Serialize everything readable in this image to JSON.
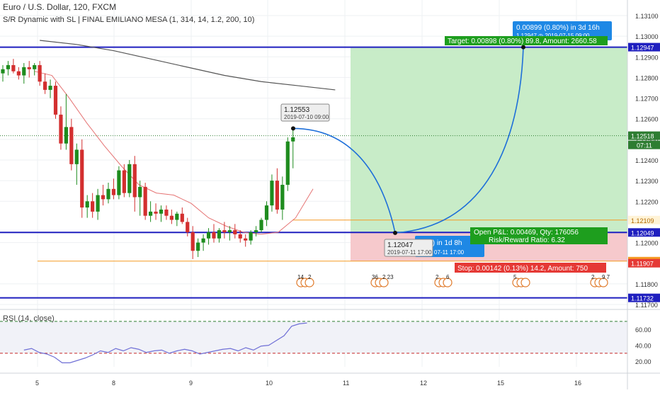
{
  "header": {
    "symbol": "Euro / U.S. Dollar",
    "interval": "120",
    "exchange": "FXCM",
    "indicator": "S/R Dynamic with SL | FINAL EMILIANO MESA (1, 314, 14, 1.2, 200, 10)"
  },
  "colors": {
    "up": "#26a69a",
    "upBody": "#1e8c1e",
    "down": "#d32f2f",
    "srLine": "#1f1fbf",
    "orange": "#f59a23",
    "targetZone": "#c8ecc8",
    "stopZone": "#f6c9cc",
    "arc": "#1e6fd9",
    "ma200": "#555555",
    "ma10": "#e57373",
    "rsi": "#6f6fd6"
  },
  "chart_data": {
    "type": "candlestick",
    "price_axis": {
      "ticks": [
        "1.13100",
        "1.13000",
        "1.12900",
        "1.12800",
        "1.12700",
        "1.12600",
        "1.12500",
        "1.12400",
        "1.12300",
        "1.12200",
        "1.12000",
        "1.11800",
        "1.11700"
      ],
      "range": [
        1.1166,
        1.1318
      ]
    },
    "time_axis": {
      "ticks": [
        "5",
        "8",
        "9",
        "10",
        "11",
        "12",
        "15",
        "16"
      ]
    },
    "candles": [
      [
        1.1282,
        1.1286,
        1.1278,
        1.1284
      ],
      [
        1.1284,
        1.1288,
        1.1281,
        1.1286
      ],
      [
        1.1286,
        1.1289,
        1.1282,
        1.1283
      ],
      [
        1.1283,
        1.1285,
        1.1279,
        1.1281
      ],
      [
        1.1281,
        1.1287,
        1.1277,
        1.1285
      ],
      [
        1.1285,
        1.1288,
        1.128,
        1.1284
      ],
      [
        1.1284,
        1.1287,
        1.1281,
        1.1286
      ],
      [
        1.1286,
        1.1288,
        1.1276,
        1.1278
      ],
      [
        1.1278,
        1.1282,
        1.1272,
        1.1274
      ],
      [
        1.1274,
        1.1279,
        1.127,
        1.1276
      ],
      [
        1.1276,
        1.1278,
        1.126,
        1.1262
      ],
      [
        1.1262,
        1.1266,
        1.1245,
        1.1248
      ],
      [
        1.1248,
        1.1272,
        1.1245,
        1.1256
      ],
      [
        1.1256,
        1.126,
        1.1235,
        1.1238
      ],
      [
        1.1238,
        1.1248,
        1.1228,
        1.1245
      ],
      [
        1.1245,
        1.125,
        1.1212,
        1.1217
      ],
      [
        1.1217,
        1.1223,
        1.1212,
        1.122
      ],
      [
        1.122,
        1.1224,
        1.1212,
        1.1215
      ],
      [
        1.1215,
        1.1226,
        1.1211,
        1.1223
      ],
      [
        1.1223,
        1.1228,
        1.1218,
        1.1221
      ],
      [
        1.1221,
        1.1229,
        1.1219,
        1.1226
      ],
      [
        1.1226,
        1.1231,
        1.1221,
        1.1223
      ],
      [
        1.1223,
        1.1237,
        1.1221,
        1.1235
      ],
      [
        1.1235,
        1.1238,
        1.1222,
        1.1224
      ],
      [
        1.1224,
        1.124,
        1.1222,
        1.1238
      ],
      [
        1.1238,
        1.1242,
        1.1215,
        1.1222
      ],
      [
        1.1222,
        1.123,
        1.1213,
        1.1227
      ],
      [
        1.1227,
        1.1229,
        1.1211,
        1.1213
      ],
      [
        1.1213,
        1.122,
        1.121,
        1.1215
      ],
      [
        1.1215,
        1.1219,
        1.1211,
        1.1214
      ],
      [
        1.1214,
        1.1218,
        1.121,
        1.1216
      ],
      [
        1.1216,
        1.1218,
        1.1211,
        1.1213
      ],
      [
        1.1213,
        1.1216,
        1.1209,
        1.1211
      ],
      [
        1.1211,
        1.1215,
        1.1208,
        1.1214
      ],
      [
        1.1214,
        1.1217,
        1.1209,
        1.121
      ],
      [
        1.121,
        1.1212,
        1.1203,
        1.1205
      ],
      [
        1.1205,
        1.1208,
        1.1192,
        1.1196
      ],
      [
        1.1196,
        1.1202,
        1.1193,
        1.12
      ],
      [
        1.12,
        1.1204,
        1.1196,
        1.1202
      ],
      [
        1.1202,
        1.1207,
        1.1199,
        1.1205
      ],
      [
        1.1205,
        1.1209,
        1.12,
        1.1202
      ],
      [
        1.1202,
        1.1207,
        1.12,
        1.1206
      ],
      [
        1.1206,
        1.121,
        1.1202,
        1.1205
      ],
      [
        1.1205,
        1.1208,
        1.1201,
        1.1206
      ],
      [
        1.1206,
        1.1209,
        1.1202,
        1.1204
      ],
      [
        1.1204,
        1.1206,
        1.12,
        1.1202
      ],
      [
        1.1202,
        1.1204,
        1.1198,
        1.1201
      ],
      [
        1.1201,
        1.1206,
        1.1199,
        1.1205
      ],
      [
        1.1205,
        1.1208,
        1.1203,
        1.1206
      ],
      [
        1.1206,
        1.1212,
        1.1205,
        1.1211
      ],
      [
        1.1211,
        1.122,
        1.1208,
        1.1218
      ],
      [
        1.1218,
        1.1233,
        1.1215,
        1.123
      ],
      [
        1.123,
        1.1236,
        1.1214,
        1.1216
      ],
      [
        1.1216,
        1.1232,
        1.1211,
        1.1228
      ],
      [
        1.1228,
        1.1251,
        1.1225,
        1.1249
      ],
      [
        1.1249,
        1.1255,
        1.1236,
        1.1251
      ]
    ],
    "ma200": [
      1.1298,
      1.1296,
      1.1293,
      1.1289,
      1.1285,
      1.1281,
      1.1278,
      1.1276,
      1.1274
    ],
    "ma10": [
      1.1283,
      1.1281,
      1.127,
      1.1258,
      1.1247,
      1.1237,
      1.1228,
      1.1224,
      1.1223,
      1.1219,
      1.1212,
      1.1208,
      1.1205,
      1.1204,
      1.1205,
      1.1212,
      1.1226
    ],
    "rsi": {
      "range": [
        5,
        85
      ],
      "ticks": [
        "60.00",
        "40.00",
        "20.00"
      ],
      "levels": [
        70,
        30
      ],
      "values": [
        34,
        36,
        31,
        29,
        25,
        18,
        18,
        21,
        24,
        28,
        33,
        31,
        36,
        33,
        37,
        35,
        31,
        33,
        34,
        30,
        33,
        35,
        33,
        29,
        31,
        33,
        35,
        36,
        33,
        37,
        34,
        39,
        40,
        46,
        52,
        64,
        67,
        68
      ]
    },
    "levels": {
      "resistance": 1.12947,
      "support": 1.12049,
      "support_low": 1.11732,
      "orange_upper": 1.12109,
      "orange_lower": 1.1191
    }
  },
  "annotations": {
    "high_point": {
      "price": "1.12553",
      "time": "2019-07-10 09:00"
    },
    "low_point": {
      "price": "1.12047",
      "time": "2019-07-11 17:00"
    },
    "low_point_projection": {
      "text": ".44%) in 1d 8h",
      "time": "07-11  17:00"
    },
    "target_point": {
      "text": "0.00899 (0.80%) in 3d 16h",
      "sub": "1.12947  ◷ 2019-07-15  09:00"
    },
    "target_label": "Target: 0.00898 (0.80%) 89.8, Amount: 2660.58",
    "open_pnl": "Open P&L: 0.00469, Qty: 176056",
    "risk_reward": "Risk/Reward Ratio: 6.32",
    "stop_label": "Stop: 0.00142 (0.13%) 14.2, Amount: 750"
  },
  "price_labels": {
    "resistance": "1.12947",
    "current": "1.12518",
    "countdown": "07:11",
    "orange_upper": "1.12109",
    "support": "1.12049",
    "orange_lower": "1.11910",
    "stop": "1.11907",
    "support_low": "1.11732"
  },
  "events": [
    {
      "label": "14",
      "extra": "2"
    },
    {
      "label": "36",
      "extra": "2 23"
    },
    {
      "label": "2",
      "extra": "6"
    },
    {
      "label": "5",
      "extra": ""
    },
    {
      "label": "2",
      "extra": "9 7"
    }
  ],
  "rsi": {
    "label": "RSI (14, close)"
  }
}
